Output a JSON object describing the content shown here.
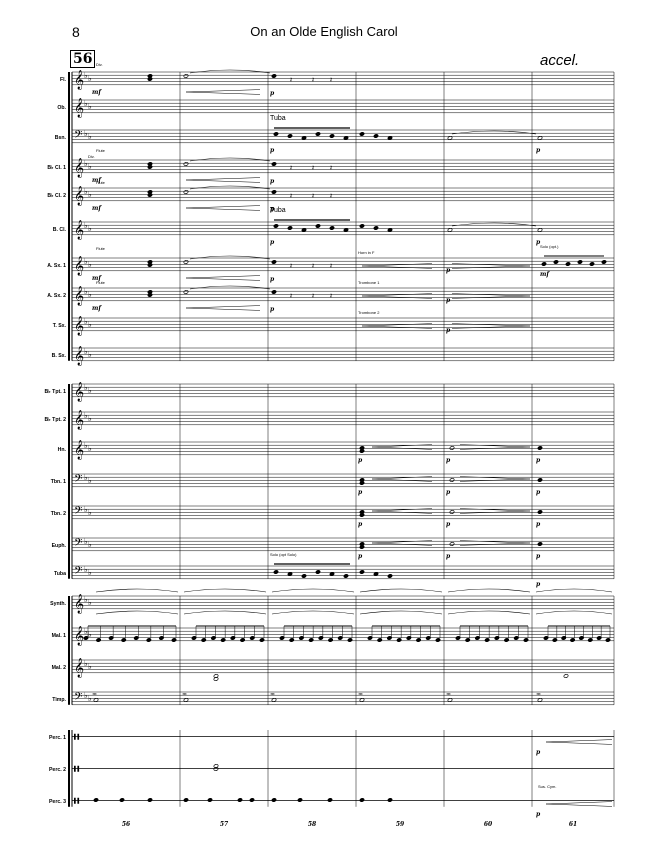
{
  "header": {
    "page_number": "8",
    "title": "On an Olde English Carol",
    "tempo_marking": "accel.",
    "rehearsal_mark": "56"
  },
  "measure_numbers": [
    "56",
    "57",
    "58",
    "59",
    "60",
    "61"
  ],
  "staves": [
    {
      "label": "Fl.",
      "clef": "treble"
    },
    {
      "label": "Ob.",
      "clef": "treble"
    },
    {
      "label": "Bsn.",
      "clef": "bass"
    },
    {
      "label": "B♭ Cl. 1",
      "clef": "treble"
    },
    {
      "label": "B♭ Cl. 2",
      "clef": "treble"
    },
    {
      "label": "B. Cl.",
      "clef": "treble"
    },
    {
      "label": "A. Sx. 1",
      "clef": "treble"
    },
    {
      "label": "A. Sx. 2",
      "clef": "treble"
    },
    {
      "label": "T. Sx.",
      "clef": "treble"
    },
    {
      "label": "B. Sx.",
      "clef": "treble"
    },
    {
      "label": "B♭ Tpt. 1",
      "clef": "treble"
    },
    {
      "label": "B♭ Tpt. 2",
      "clef": "treble"
    },
    {
      "label": "Hn.",
      "clef": "treble"
    },
    {
      "label": "Tbn. 1",
      "clef": "bass"
    },
    {
      "label": "Tbn. 2",
      "clef": "bass"
    },
    {
      "label": "Euph.",
      "clef": "bass"
    },
    {
      "label": "Tuba",
      "clef": "bass"
    },
    {
      "label": "Synth.",
      "clef": "treble"
    },
    {
      "label": "Mal. 1",
      "clef": "treble"
    },
    {
      "label": "Mal. 2",
      "clef": "treble"
    },
    {
      "label": "Timp.",
      "clef": "bass"
    },
    {
      "label": "Perc. 1",
      "clef": "perc"
    },
    {
      "label": "Perc. 2",
      "clef": "perc"
    },
    {
      "label": "Perc. 3",
      "clef": "perc"
    }
  ],
  "annotations": {
    "fl_div": "Div.",
    "cl1_flute": "Flute",
    "cl1_div": "Div.",
    "cl2_flute": "Flute",
    "asx1_flute": "Flute",
    "asx2_flute": "Flute",
    "bsn_tuba": "Tuba",
    "bcl_tuba": "Tuba",
    "horn_f": "Horn in F",
    "trombone1": "Trombone 1",
    "trombone2": "Trombone 2",
    "solo_opt": "Solo (opt.)",
    "tuba_solo": "Solo (opt Solo)",
    "sus_cym": "Sus. Cym."
  },
  "dynamics": {
    "mf": "mf",
    "p": "p"
  }
}
